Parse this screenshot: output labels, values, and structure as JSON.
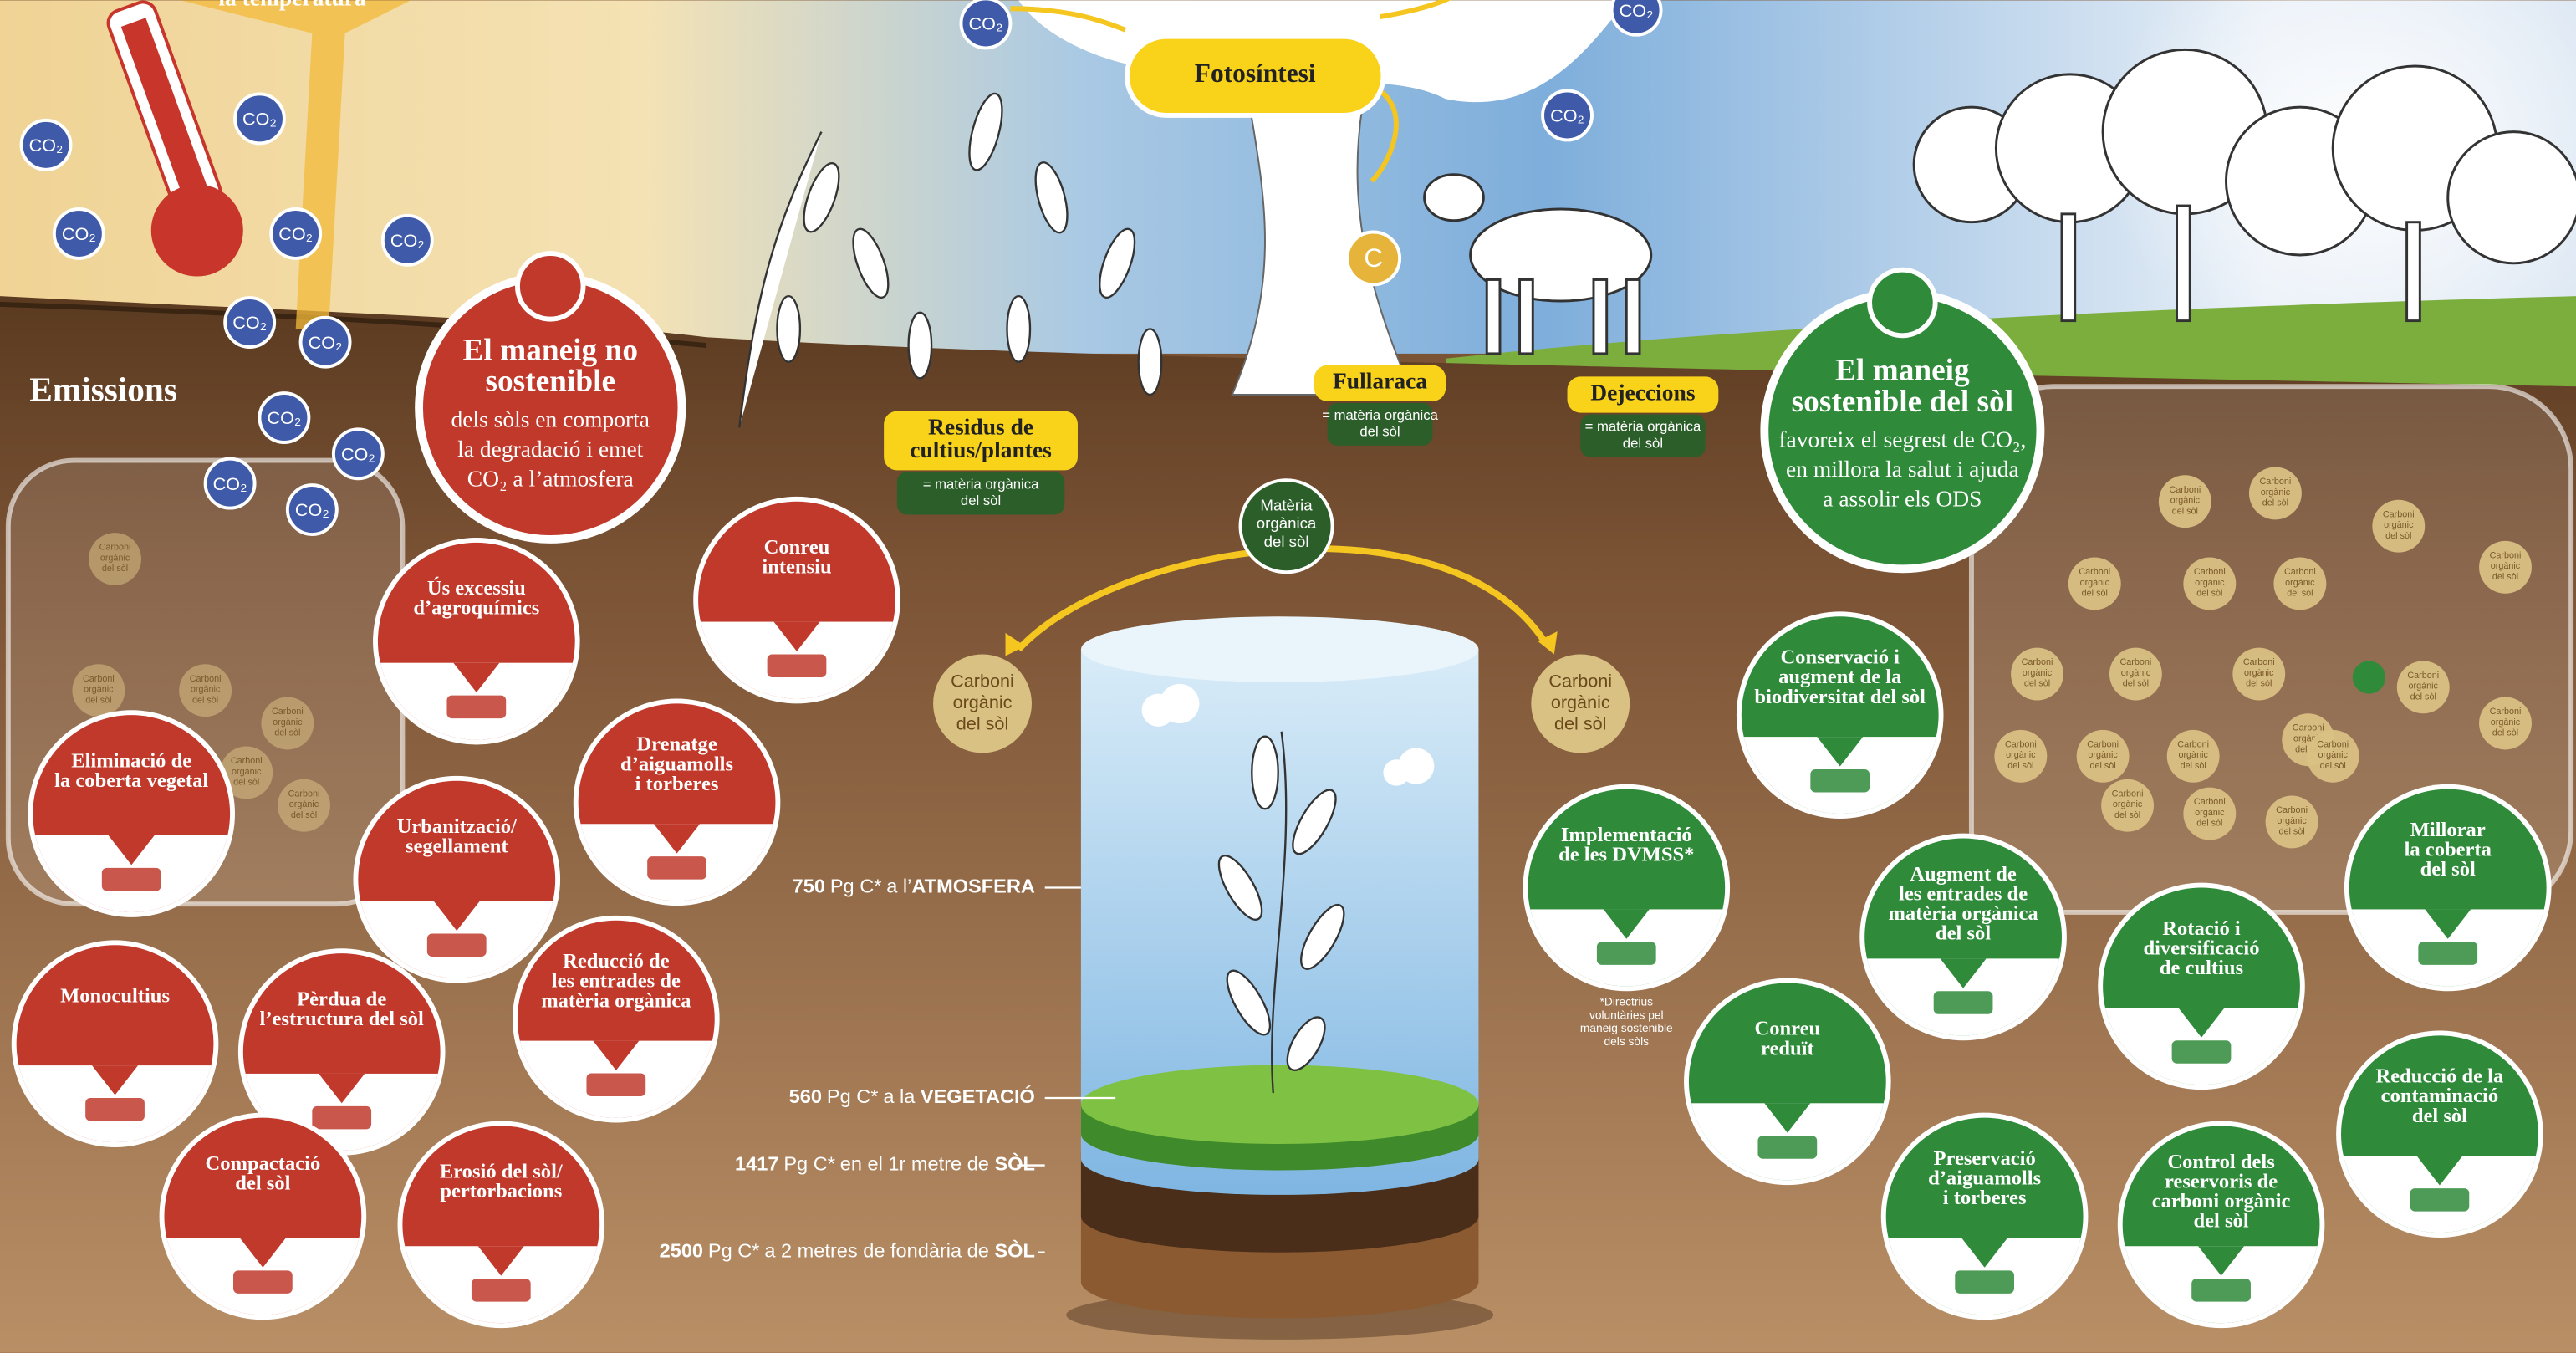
{
  "temperature_label": "la temperatura",
  "co2": "CO₂",
  "photosynthesis": "Fotosíntesi",
  "carbon": "C",
  "emissions": "Emissions",
  "inputs": [
    {
      "title_lines": [
        "Residus de",
        "cultius/plantes"
      ],
      "note_lines": [
        "= matèria orgànica",
        "del sòl"
      ]
    },
    {
      "title_lines": [
        "Fullaraca"
      ],
      "note_lines": [
        "= matèria orgànica",
        "del sòl"
      ]
    },
    {
      "title_lines": [
        "Dejeccions"
      ],
      "note_lines": [
        "= matèria orgànica",
        "del sòl"
      ]
    }
  ],
  "soil_organic_matter": [
    "Matèria",
    "orgànica",
    "del sòl"
  ],
  "soil_organic_carbon": [
    "Carboni",
    "orgànic",
    "del sòl"
  ],
  "unsustainable": {
    "heading_lines": [
      "El maneig no",
      "sostenible"
    ],
    "body_lines": [
      "dels sòls en comporta",
      "la degradació i emet",
      "CO₂ a l’atmosfera"
    ]
  },
  "sustainable": {
    "heading_lines": [
      "El maneig",
      "sostenible del sòl"
    ],
    "body_lines": [
      "favoreix el segrest de CO₂,",
      "en millora la salut i ajuda",
      "a assolir els ODS"
    ]
  },
  "bad_practices": [
    {
      "lines": [
        "Conreu",
        "intensiu"
      ]
    },
    {
      "lines": [
        "Ús excessiu",
        "d’agroquímics"
      ]
    },
    {
      "lines": [
        "Eliminació de",
        "la coberta vegetal"
      ]
    },
    {
      "lines": [
        "Drenatge",
        "d’aiguamolls",
        "i torberes"
      ]
    },
    {
      "lines": [
        "Urbanització/",
        "segellament"
      ]
    },
    {
      "lines": [
        "Monocultius"
      ]
    },
    {
      "lines": [
        "Pèrdua de",
        "l’estructura del sòl"
      ]
    },
    {
      "lines": [
        "Reducció de",
        "les entrades de",
        "matèria orgànica"
      ]
    },
    {
      "lines": [
        "Compactació",
        "del sòl"
      ]
    },
    {
      "lines": [
        "Erosió del sòl/",
        "pertorbacions"
      ]
    }
  ],
  "good_practices": [
    {
      "lines": [
        "Conservació i",
        "augment de la",
        "biodiversitat del sòl"
      ]
    },
    {
      "lines": [
        "Implementació",
        "de les DVMSS*"
      ]
    },
    {
      "lines": [
        "Augment de",
        "les entrades de",
        "matèria orgànica",
        "del sòl"
      ]
    },
    {
      "lines": [
        "Millorar",
        "la coberta",
        "del sòl"
      ]
    },
    {
      "lines": [
        "Rotació i",
        "diversificació",
        "de cultius"
      ]
    },
    {
      "lines": [
        "Conreu",
        "reduït"
      ]
    },
    {
      "lines": [
        "Reducció de la",
        "contaminació",
        "del sòl"
      ]
    },
    {
      "lines": [
        "Preservació",
        "d’aiguamolls",
        "i torberes"
      ]
    },
    {
      "lines": [
        "Control dels",
        "reservoris de",
        "carboni orgànic",
        "del sòl"
      ]
    }
  ],
  "footnote_lines": [
    "*Directrius",
    "voluntàries pel",
    "maneig sostenible",
    "dels sòls"
  ],
  "stocks": [
    {
      "amount": 750,
      "unit": "Pg C*",
      "prefix": "a l’",
      "place": "ATMOSFERA"
    },
    {
      "amount": 560,
      "unit": "Pg C*",
      "prefix": "a la ",
      "place": "VEGETACIÓ"
    },
    {
      "amount": 1417,
      "unit": "Pg C*",
      "prefix": "en el 1r metre de ",
      "place": "SÒL"
    },
    {
      "amount": 2500,
      "unit": "Pg C*",
      "prefix": "a 2 metres de fondària de ",
      "place": "SÒL"
    }
  ]
}
